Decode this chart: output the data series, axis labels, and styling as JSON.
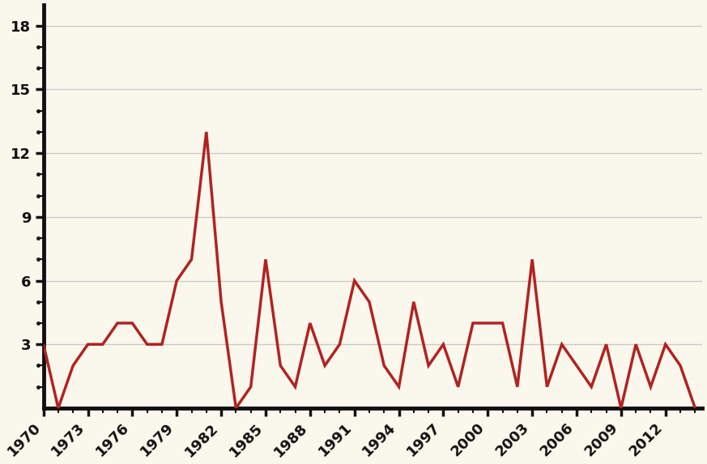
{
  "years": [
    1970,
    1971,
    1972,
    1973,
    1974,
    1975,
    1976,
    1977,
    1978,
    1979,
    1980,
    1981,
    1982,
    1983,
    1984,
    1985,
    1986,
    1987,
    1988,
    1989,
    1990,
    1991,
    1992,
    1993,
    1994,
    1995,
    1996,
    1997,
    1998,
    1999,
    2000,
    2001,
    2002,
    2003,
    2004,
    2005,
    2006,
    2007,
    2008,
    2009,
    2010,
    2011,
    2012,
    2013,
    2014
  ],
  "values": [
    3,
    0,
    2,
    3,
    3,
    4,
    4,
    3,
    3,
    6,
    7,
    13,
    5,
    0,
    1,
    7,
    2,
    1,
    4,
    2,
    3,
    6,
    5,
    2,
    1,
    5,
    2,
    3,
    1,
    4,
    4,
    4,
    1,
    7,
    1,
    3,
    2,
    1,
    3,
    0,
    3,
    1,
    3,
    2,
    0
  ],
  "line_color": "#b22222",
  "background_color": "#faf8ec",
  "grid_color": "#c8c8c8",
  "yticks_major": [
    3,
    6,
    9,
    12,
    15,
    18
  ],
  "yticks_minor_dots": [
    1,
    2,
    4,
    5,
    7,
    8,
    10,
    11,
    13,
    14,
    16,
    17
  ],
  "xticks": [
    1970,
    1973,
    1976,
    1979,
    1982,
    1985,
    1988,
    1991,
    1994,
    1997,
    2000,
    2003,
    2006,
    2009,
    2012
  ],
  "ylim": [
    0,
    19
  ],
  "xlim": [
    1970,
    2014.5
  ],
  "line_width": 2.5,
  "spine_linewidth": 3.5,
  "spine_color": "#111111",
  "tick_label_fontsize": 13,
  "tick_label_fontweight": "bold"
}
